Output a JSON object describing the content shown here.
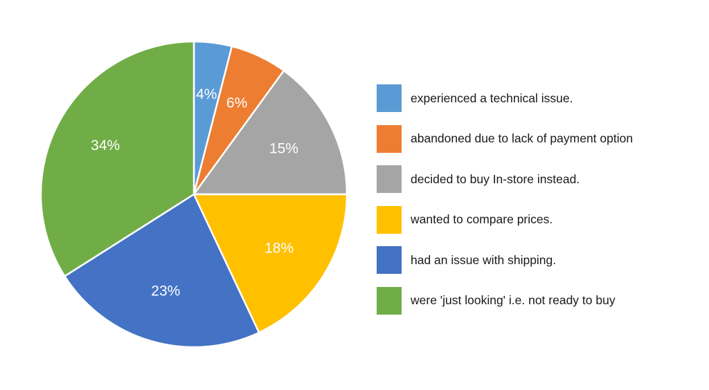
{
  "chart_data": {
    "type": "pie",
    "title": "",
    "start_angle": "12 o'clock",
    "direction": "clockwise",
    "legend_position": "right",
    "slices": [
      {
        "label": "experienced a technical issue.",
        "value": 4,
        "display": "4%",
        "color": "#5B9BD5"
      },
      {
        "label": "abandoned due to lack of payment option",
        "value": 6,
        "display": "6%",
        "color": "#ED7D31"
      },
      {
        "label": "decided to buy In-store instead.",
        "value": 15,
        "display": "15%",
        "color": "#A5A5A5"
      },
      {
        "label": "wanted to compare prices.",
        "value": 18,
        "display": "18%",
        "color": "#FFC000"
      },
      {
        "label": "had an issue with shipping.",
        "value": 23,
        "display": "23%",
        "color": "#4472C4"
      },
      {
        "label": "were 'just looking' i.e. not ready to buy",
        "value": 34,
        "display": "34%",
        "color": "#70AD47"
      }
    ]
  }
}
